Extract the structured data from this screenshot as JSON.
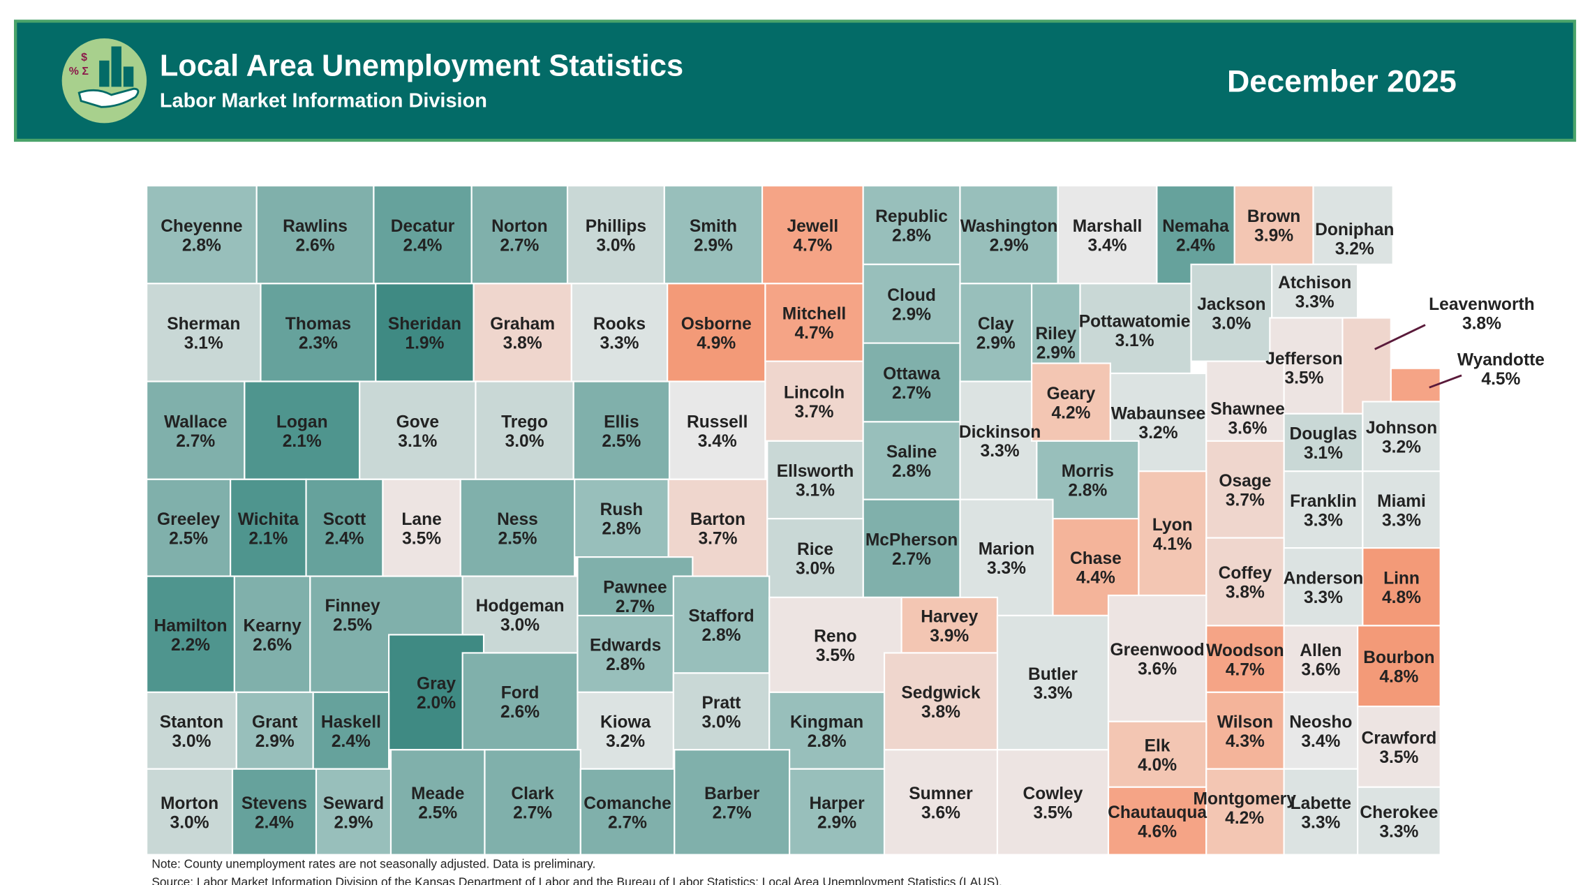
{
  "header": {
    "title": "Local Area Unemployment Statistics",
    "subtitle": "Labor Market Information Division",
    "date": "December 2025"
  },
  "counties": [
    {
      "name": "Cheyenne",
      "rate": "2.8%"
    },
    {
      "name": "Rawlins",
      "rate": "2.6%"
    },
    {
      "name": "Decatur",
      "rate": "2.4%"
    },
    {
      "name": "Norton",
      "rate": "2.7%"
    },
    {
      "name": "Phillips",
      "rate": "3.0%"
    },
    {
      "name": "Smith",
      "rate": "2.9%"
    },
    {
      "name": "Jewell",
      "rate": "4.7%"
    },
    {
      "name": "Republic",
      "rate": "2.8%"
    },
    {
      "name": "Washington",
      "rate": "2.9%"
    },
    {
      "name": "Marshall",
      "rate": "3.4%"
    },
    {
      "name": "Nemaha",
      "rate": "2.4%"
    },
    {
      "name": "Brown",
      "rate": "3.9%"
    },
    {
      "name": "Doniphan",
      "rate": "3.2%"
    },
    {
      "name": "Sherman",
      "rate": "3.1%"
    },
    {
      "name": "Thomas",
      "rate": "2.3%"
    },
    {
      "name": "Sheridan",
      "rate": "1.9%"
    },
    {
      "name": "Graham",
      "rate": "3.8%"
    },
    {
      "name": "Rooks",
      "rate": "3.3%"
    },
    {
      "name": "Osborne",
      "rate": "4.9%"
    },
    {
      "name": "Mitchell",
      "rate": "4.7%"
    },
    {
      "name": "Cloud",
      "rate": "2.9%"
    },
    {
      "name": "Clay",
      "rate": "2.9%"
    },
    {
      "name": "Riley",
      "rate": "2.9%"
    },
    {
      "name": "Pottawatomie",
      "rate": "3.1%"
    },
    {
      "name": "Jackson",
      "rate": "3.0%"
    },
    {
      "name": "Atchison",
      "rate": "3.3%"
    },
    {
      "name": "Leavenworth",
      "rate": "3.8%"
    },
    {
      "name": "Jefferson",
      "rate": "3.5%"
    },
    {
      "name": "Wyandotte",
      "rate": "4.5%"
    },
    {
      "name": "Wallace",
      "rate": "2.7%"
    },
    {
      "name": "Logan",
      "rate": "2.1%"
    },
    {
      "name": "Gove",
      "rate": "3.1%"
    },
    {
      "name": "Trego",
      "rate": "3.0%"
    },
    {
      "name": "Ellis",
      "rate": "2.5%"
    },
    {
      "name": "Russell",
      "rate": "3.4%"
    },
    {
      "name": "Lincoln",
      "rate": "3.7%"
    },
    {
      "name": "Ottawa",
      "rate": "2.7%"
    },
    {
      "name": "Dickinson",
      "rate": "3.3%"
    },
    {
      "name": "Geary",
      "rate": "4.2%"
    },
    {
      "name": "Wabaunsee",
      "rate": "3.2%"
    },
    {
      "name": "Shawnee",
      "rate": "3.6%"
    },
    {
      "name": "Douglas",
      "rate": "3.1%"
    },
    {
      "name": "Johnson",
      "rate": "3.2%"
    },
    {
      "name": "Greeley",
      "rate": "2.5%"
    },
    {
      "name": "Wichita",
      "rate": "2.1%"
    },
    {
      "name": "Scott",
      "rate": "2.4%"
    },
    {
      "name": "Lane",
      "rate": "3.5%"
    },
    {
      "name": "Ness",
      "rate": "2.5%"
    },
    {
      "name": "Rush",
      "rate": "2.8%"
    },
    {
      "name": "Barton",
      "rate": "3.7%"
    },
    {
      "name": "Ellsworth",
      "rate": "3.1%"
    },
    {
      "name": "Saline",
      "rate": "2.8%"
    },
    {
      "name": "Morris",
      "rate": "2.8%"
    },
    {
      "name": "Marion",
      "rate": "3.3%"
    },
    {
      "name": "Osage",
      "rate": "3.7%"
    },
    {
      "name": "Franklin",
      "rate": "3.3%"
    },
    {
      "name": "Miami",
      "rate": "3.3%"
    },
    {
      "name": "Lyon",
      "rate": "4.1%"
    },
    {
      "name": "McPherson",
      "rate": "2.7%"
    },
    {
      "name": "Rice",
      "rate": "3.0%"
    },
    {
      "name": "Hamilton",
      "rate": "2.2%"
    },
    {
      "name": "Kearny",
      "rate": "2.6%"
    },
    {
      "name": "Finney",
      "rate": "2.5%"
    },
    {
      "name": "Hodgeman",
      "rate": "3.0%"
    },
    {
      "name": "Pawnee",
      "rate": "2.7%"
    },
    {
      "name": "Stafford",
      "rate": "2.8%"
    },
    {
      "name": "Chase",
      "rate": "4.4%"
    },
    {
      "name": "Coffey",
      "rate": "3.8%"
    },
    {
      "name": "Anderson",
      "rate": "3.3%"
    },
    {
      "name": "Linn",
      "rate": "4.8%"
    },
    {
      "name": "Reno",
      "rate": "3.5%"
    },
    {
      "name": "Harvey",
      "rate": "3.9%"
    },
    {
      "name": "Butler",
      "rate": "3.3%"
    },
    {
      "name": "Greenwood",
      "rate": "3.6%"
    },
    {
      "name": "Gray",
      "rate": "2.0%"
    },
    {
      "name": "Ford",
      "rate": "2.6%"
    },
    {
      "name": "Edwards",
      "rate": "2.8%"
    },
    {
      "name": "Pratt",
      "rate": "3.0%"
    },
    {
      "name": "Kingman",
      "rate": "2.8%"
    },
    {
      "name": "Sedgwick",
      "rate": "3.8%"
    },
    {
      "name": "Woodson",
      "rate": "4.7%"
    },
    {
      "name": "Allen",
      "rate": "3.6%"
    },
    {
      "name": "Bourbon",
      "rate": "4.8%"
    },
    {
      "name": "Stanton",
      "rate": "3.0%"
    },
    {
      "name": "Grant",
      "rate": "2.9%"
    },
    {
      "name": "Haskell",
      "rate": "2.4%"
    },
    {
      "name": "Kiowa",
      "rate": "3.2%"
    },
    {
      "name": "Wilson",
      "rate": "4.3%"
    },
    {
      "name": "Neosho",
      "rate": "3.4%"
    },
    {
      "name": "Crawford",
      "rate": "3.5%"
    },
    {
      "name": "Elk",
      "rate": "4.0%"
    },
    {
      "name": "Morton",
      "rate": "3.0%"
    },
    {
      "name": "Stevens",
      "rate": "2.4%"
    },
    {
      "name": "Seward",
      "rate": "2.9%"
    },
    {
      "name": "Meade",
      "rate": "2.5%"
    },
    {
      "name": "Clark",
      "rate": "2.7%"
    },
    {
      "name": "Comanche",
      "rate": "2.7%"
    },
    {
      "name": "Barber",
      "rate": "2.7%"
    },
    {
      "name": "Harper",
      "rate": "2.9%"
    },
    {
      "name": "Sumner",
      "rate": "3.6%"
    },
    {
      "name": "Cowley",
      "rate": "3.5%"
    },
    {
      "name": "Chautauqua",
      "rate": "4.6%"
    },
    {
      "name": "Montgomery",
      "rate": "4.2%"
    },
    {
      "name": "Labette",
      "rate": "3.3%"
    },
    {
      "name": "Cherokee",
      "rate": "3.3%"
    }
  ],
  "notes": [
    "Note: County unemployment rates are not seasonally adjusted. Data is preliminary.",
    "Source: Labor Market Information Division of the Kansas Department of Labor and the Bureau of Labor Statistics; Local Area Unemployment Statistics (LAUS)."
  ]
}
